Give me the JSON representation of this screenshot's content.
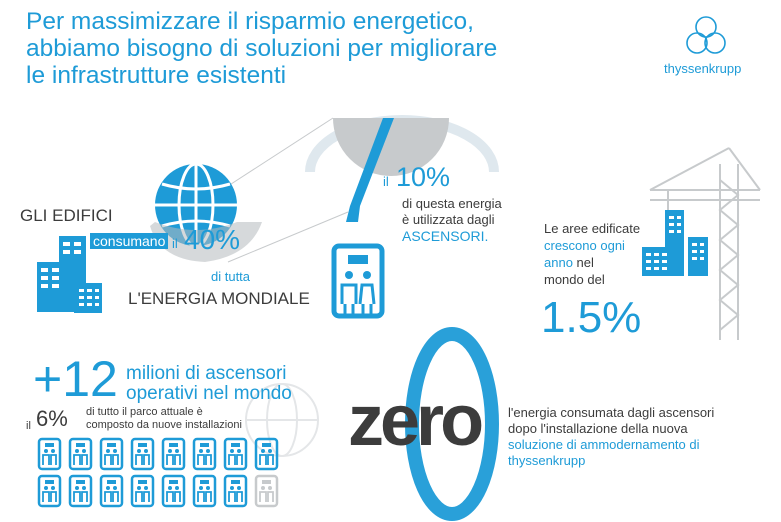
{
  "header": {
    "title_line1": "Per massimizzare il risparmio energetico,",
    "title_line2": "abbiamo bisogno di soluzioni per migliorare",
    "title_line3": "le infrastrutture esistenti",
    "brand": "thyssenkrupp"
  },
  "buildings": {
    "label": "GLI EDIFICI",
    "verb": "consumano",
    "il": "il",
    "percent": "40%",
    "sub1": "di tutta",
    "sub2": "L'ENERGIA MONDIALE"
  },
  "elevators_share": {
    "il": "il",
    "percent": "10%",
    "line1": "di questa energia",
    "line2": "è utilizzata dagli",
    "line3": "ASCENSORI."
  },
  "growth": {
    "line1": "Le aree edificate",
    "line2": "crescono ogni",
    "line3a": "anno",
    "line3b": " nel",
    "line4": "mondo del",
    "value": "1.5%"
  },
  "elevators_count": {
    "number": "+12",
    "line1": "milioni di ascensori",
    "line2": "operativi nel mondo",
    "il": "il",
    "percent": "6%",
    "note1": "di tutto il parco attuale è",
    "note2": "composto da nuove installazioni",
    "icons_total": 16,
    "icons_highlighted": 15
  },
  "zero": {
    "word": "zero",
    "line1": "l'energia consumata dagli ascensori",
    "line2": "dopo l'installazione della nuova",
    "line3": "soluzione di ammodernamento di",
    "line4": "thyssenkrupp"
  },
  "colors": {
    "brand_blue": "#1e9bd7",
    "dark_gray": "#3c3c3c",
    "light_gray": "#c7cacc"
  }
}
